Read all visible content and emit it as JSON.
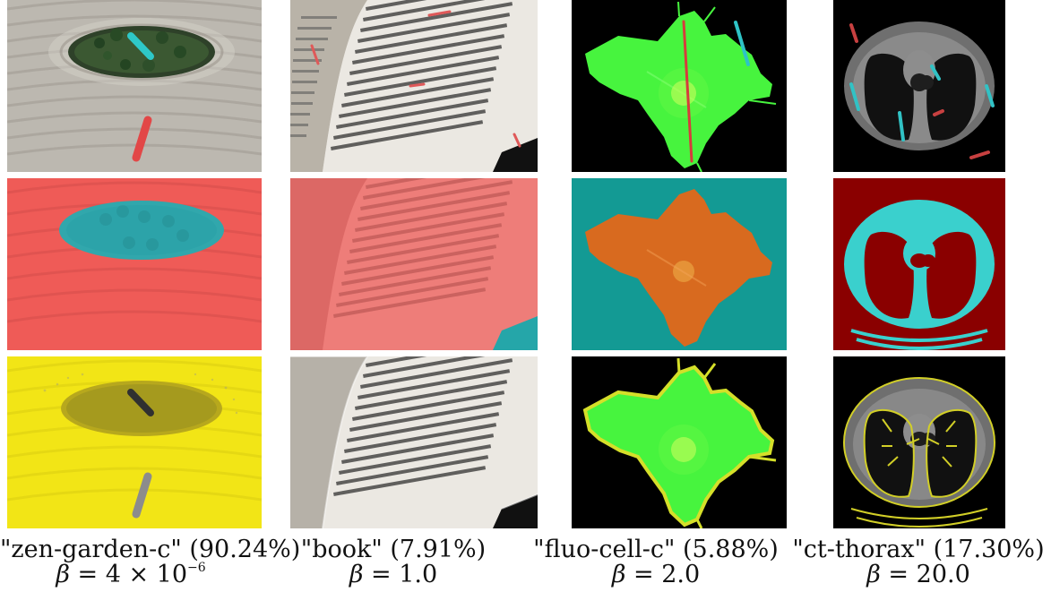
{
  "figure": {
    "columns": [
      {
        "id": "zen-garden-c",
        "caption_name": "\"zen-garden-c\" (90.24%)",
        "beta_prefix": "β",
        "beta_eq": " = ",
        "beta_value": "4 × 10",
        "beta_exp": "−6"
      },
      {
        "id": "book",
        "caption_name": "\"book\" (7.91%)",
        "beta_prefix": "β",
        "beta_eq": " = ",
        "beta_value": "1.0"
      },
      {
        "id": "fluo-cell-c",
        "caption_name": "\"fluo-cell-c\" (5.88%)",
        "beta_prefix": "β",
        "beta_eq": " = ",
        "beta_value": "2.0"
      },
      {
        "id": "ct-thorax",
        "caption_name": "\"ct-thorax\" (17.30%)",
        "beta_prefix": "β",
        "beta_eq": " = ",
        "beta_value": "20.0"
      }
    ]
  },
  "colors": {
    "zen_sand": "#b8b5ad",
    "zen_dark": "#2f3b2b",
    "zen_red_seg": "#e14545",
    "zen_cyan_seg": "#30c4c7",
    "book_red": "#ea6f6d",
    "book_cyan": "#2ea6a7",
    "fluo_green": "#33ff33",
    "fluo_orange": "#d97a1f",
    "ct_red": "#8d0000",
    "ct_cyan": "#3bd3d1",
    "ct_yellow": "#d0cf2a"
  }
}
